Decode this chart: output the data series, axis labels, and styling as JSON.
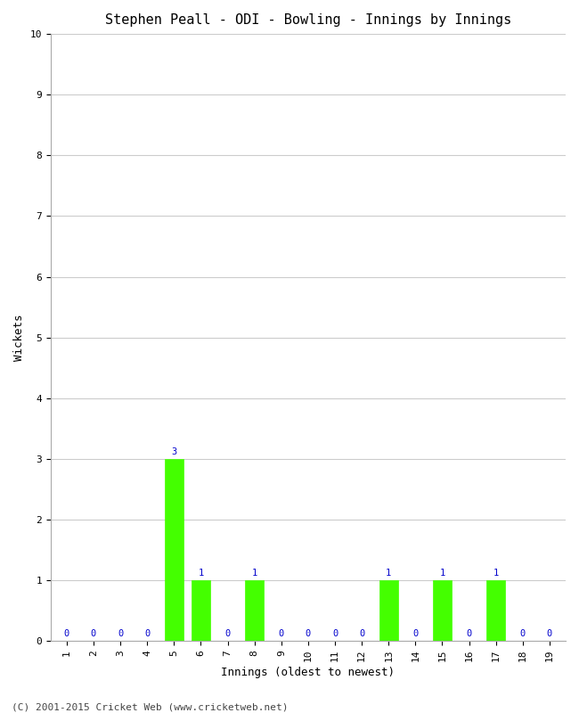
{
  "title": "Stephen Peall - ODI - Bowling - Innings by Innings",
  "xlabel": "Innings (oldest to newest)",
  "ylabel": "Wickets",
  "categories": [
    1,
    2,
    3,
    4,
    5,
    6,
    7,
    8,
    9,
    10,
    11,
    12,
    13,
    14,
    15,
    16,
    17,
    18,
    19
  ],
  "values": [
    0,
    0,
    0,
    0,
    3,
    1,
    0,
    1,
    0,
    0,
    0,
    0,
    1,
    0,
    1,
    0,
    1,
    0,
    0
  ],
  "bar_color": "#44ff00",
  "bar_edge_color": "#44ff00",
  "label_color": "#0000cc",
  "title_fontsize": 11,
  "axis_label_fontsize": 9,
  "tick_fontsize": 8,
  "annotation_fontsize": 7.5,
  "ylim": [
    0,
    10
  ],
  "yticks": [
    0,
    1,
    2,
    3,
    4,
    5,
    6,
    7,
    8,
    9,
    10
  ],
  "background_color": "#ffffff",
  "plot_bg_color": "#ffffff",
  "grid_color": "#cccccc",
  "footer": "(C) 2001-2015 Cricket Web (www.cricketweb.net)",
  "footer_fontsize": 8,
  "footer_color": "#444444"
}
